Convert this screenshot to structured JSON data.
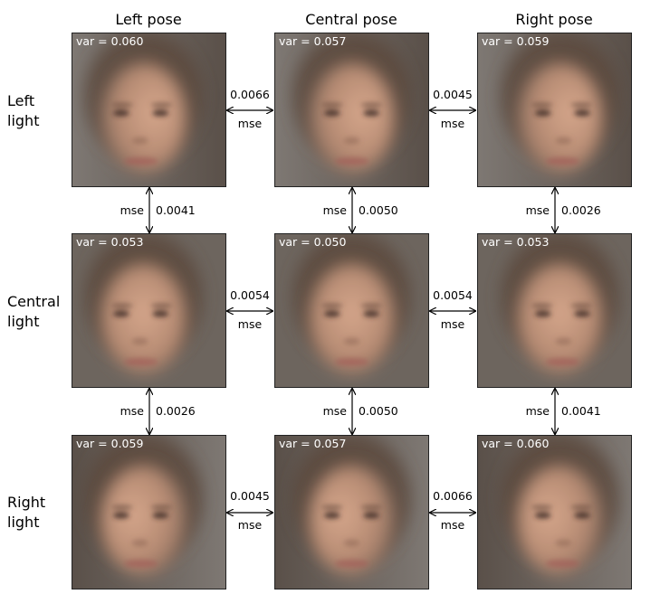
{
  "columns": [
    "Left pose",
    "Central pose",
    "Right pose"
  ],
  "rows": [
    {
      "label_line1": "Left",
      "label_line2": "light"
    },
    {
      "label_line1": "Central",
      "label_line2": "light"
    },
    {
      "label_line1": "Right",
      "label_line2": "light"
    }
  ],
  "variance": [
    [
      "var = 0.060",
      "var = 0.057",
      "var = 0.059"
    ],
    [
      "var = 0.053",
      "var = 0.050",
      "var = 0.053"
    ],
    [
      "var = 0.059",
      "var = 0.057",
      "var = 0.060"
    ]
  ],
  "mse_label": "mse",
  "horizontal_mse": [
    [
      "0.0066",
      "0.0045"
    ],
    [
      "0.0054",
      "0.0054"
    ],
    [
      "0.0045",
      "0.0066"
    ]
  ],
  "vertical_mse": [
    [
      "0.0041",
      "0.0050",
      "0.0026"
    ],
    [
      "0.0026",
      "0.0050",
      "0.0041"
    ]
  ]
}
